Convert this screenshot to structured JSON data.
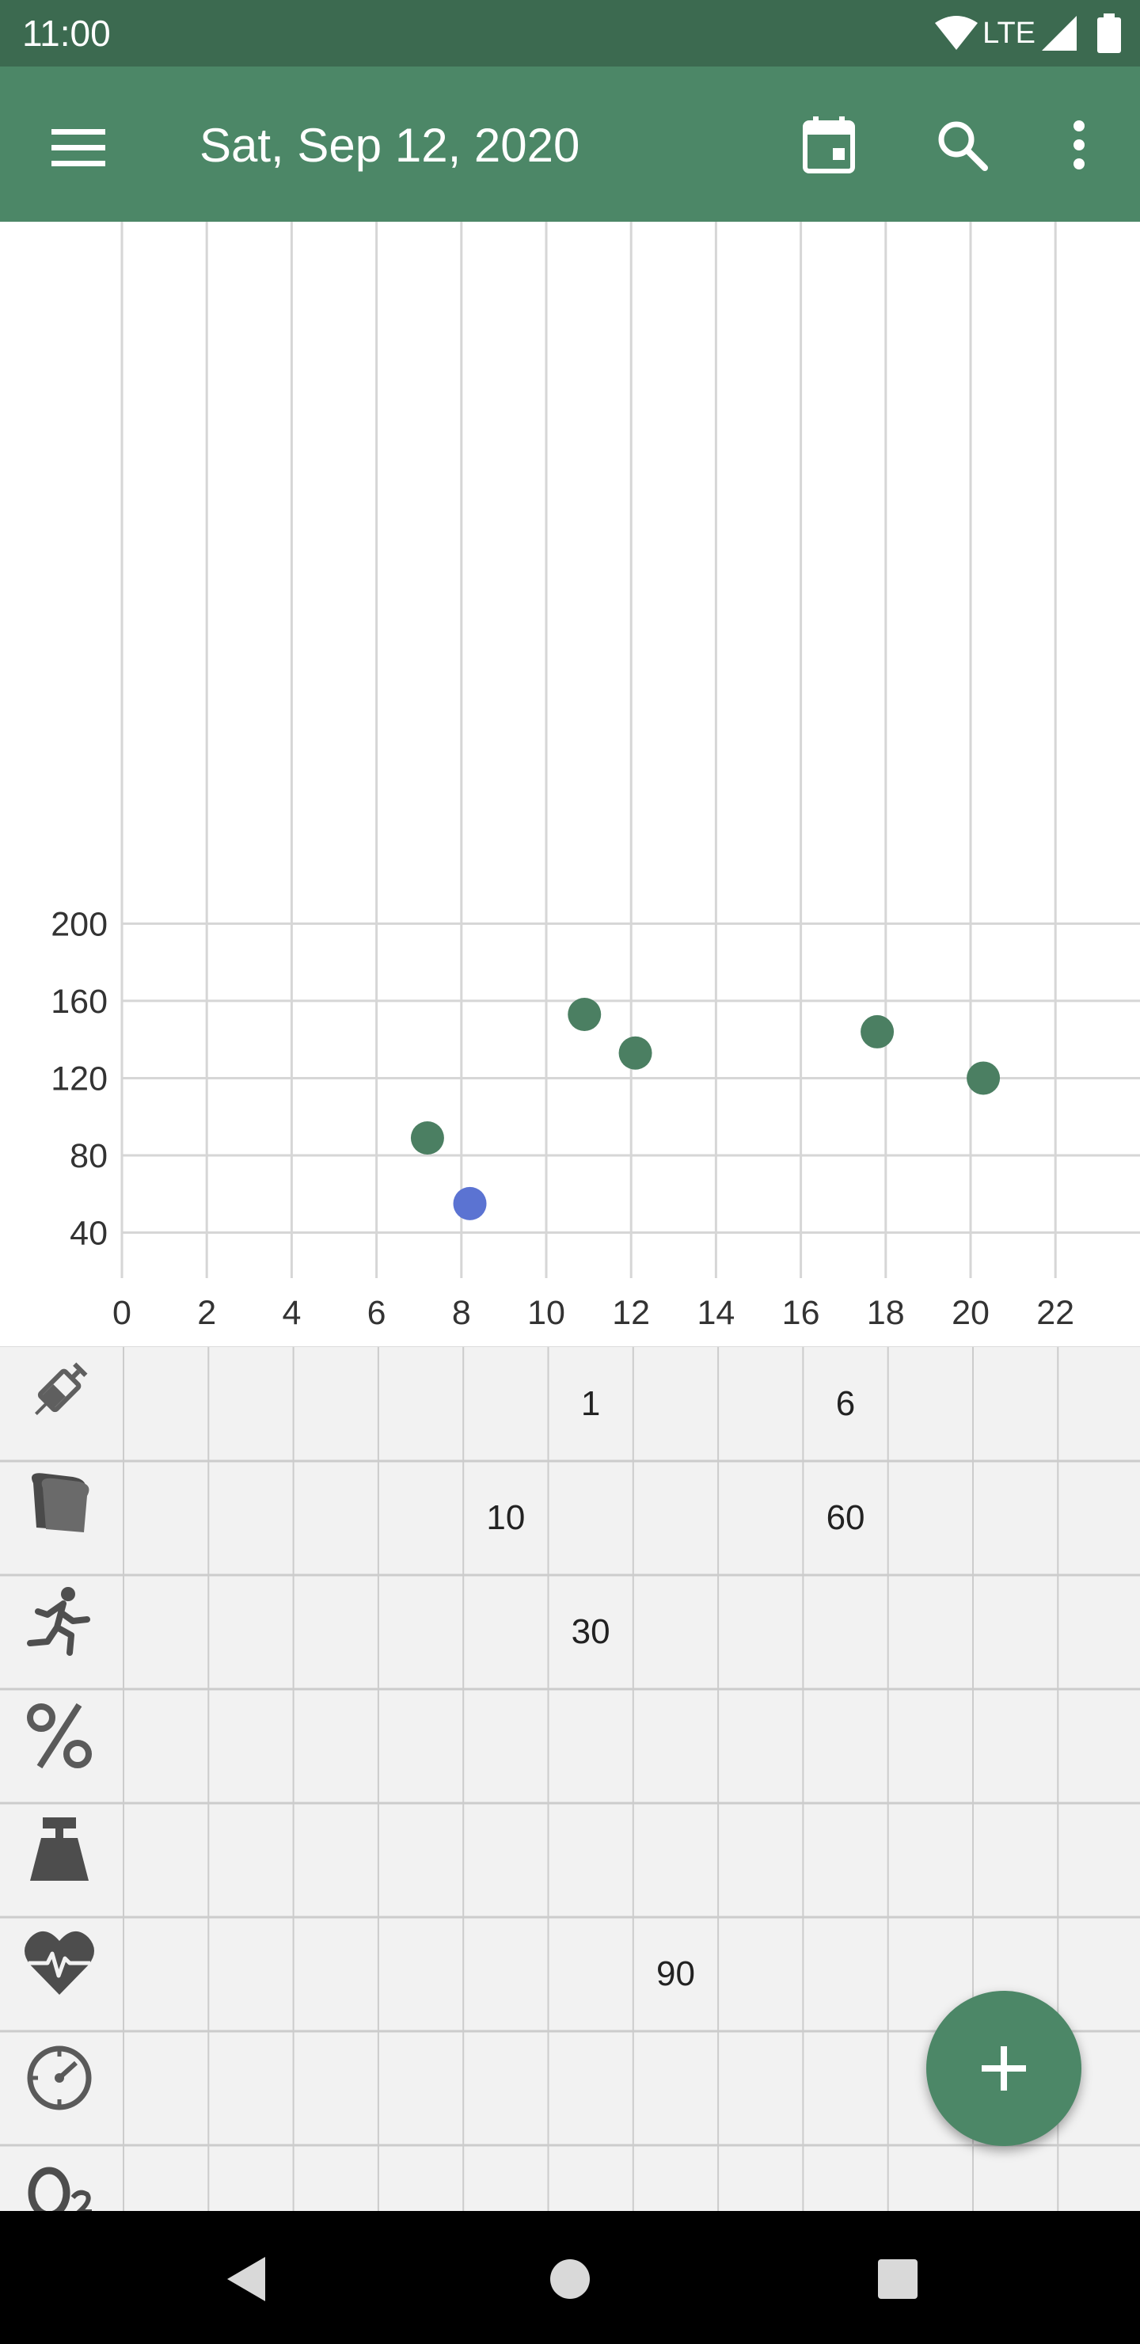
{
  "status": {
    "time": "11:00",
    "network": "LTE"
  },
  "appbar": {
    "title": "Sat, Sep 12, 2020",
    "icons": [
      "menu-icon",
      "calendar-icon",
      "search-icon",
      "more-vert-icon"
    ]
  },
  "colors": {
    "primary": "#4c8767",
    "primary_dark": "#3c6a50",
    "reading": "#4b7f62",
    "highlight": "#5b73d2",
    "grid": "#d6d6d6",
    "log_background": "#f2f2f2"
  },
  "chart_data": {
    "type": "scatter",
    "title": "",
    "xlabel": "",
    "ylabel": "",
    "xlim": [
      0,
      24
    ],
    "ylim": [
      0,
      220
    ],
    "x_ticks": [
      0,
      2,
      4,
      6,
      8,
      10,
      12,
      14,
      16,
      18,
      20,
      22
    ],
    "y_ticks": [
      40,
      80,
      120,
      160,
      200
    ],
    "grid": true,
    "series": [
      {
        "points": [
          [
            7.2,
            89
          ],
          [
            10.9,
            153
          ],
          [
            12.1,
            133
          ],
          [
            17.8,
            144
          ],
          [
            20.3,
            120
          ]
        ],
        "color": "#4b7f62"
      },
      {
        "points": [
          [
            8.2,
            55
          ]
        ],
        "color": "#5b73d2"
      }
    ]
  },
  "log_rows": [
    {
      "icon": "insulin-syringe-icon",
      "cells": [
        {
          "hour": 11,
          "value": "1"
        },
        {
          "hour": 17,
          "value": "6"
        }
      ]
    },
    {
      "icon": "bread-meal-icon",
      "cells": [
        {
          "hour": 9,
          "value": "10"
        },
        {
          "hour": 17,
          "value": "60"
        }
      ]
    },
    {
      "icon": "running-activity-icon",
      "cells": [
        {
          "hour": 11,
          "value": "30"
        }
      ]
    },
    {
      "icon": "percent-hba1c-icon",
      "cells": []
    },
    {
      "icon": "weight-scale-icon",
      "cells": []
    },
    {
      "icon": "heart-pulse-icon",
      "cells": [
        {
          "hour": 13,
          "value": "90"
        }
      ]
    },
    {
      "icon": "blood-pressure-gauge-icon",
      "cells": []
    },
    {
      "icon": "oxygen-o2-icon",
      "cells": []
    }
  ],
  "fab": {
    "icon": "add-icon"
  },
  "navbar": {
    "icons": [
      "back-icon",
      "home-icon",
      "recents-icon"
    ]
  }
}
